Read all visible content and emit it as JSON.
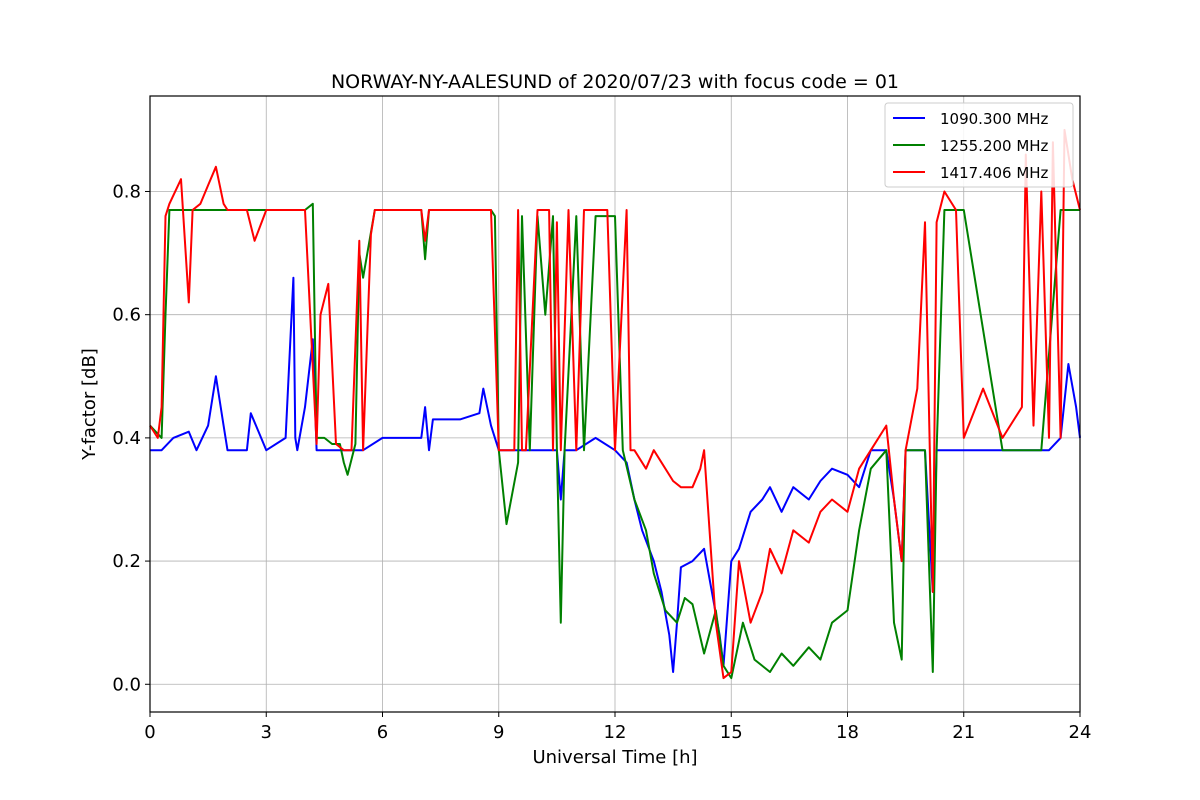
{
  "chart_data": {
    "type": "line",
    "title": "NORWAY-NY-AALESUND of 2020/07/23 with focus code = 01",
    "xlabel": "Universal Time [h]",
    "ylabel": "Y-factor [dB]",
    "xlim": [
      0,
      24
    ],
    "ylim": [
      -0.045,
      0.955
    ],
    "xticks": [
      0,
      3,
      6,
      9,
      12,
      15,
      18,
      21,
      24
    ],
    "yticks": [
      0.0,
      0.2,
      0.4,
      0.6,
      0.8
    ],
    "ytick_labels": [
      "0.0",
      "0.2",
      "0.4",
      "0.6",
      "0.8"
    ],
    "grid": true,
    "legend_position": "top-right",
    "series": [
      {
        "name": "1090.300 MHz",
        "color": "#0000ff",
        "x": [
          0,
          0.3,
          0.6,
          1.0,
          1.2,
          1.5,
          1.7,
          1.9,
          2.0,
          2.5,
          2.6,
          3.0,
          3.5,
          3.7,
          3.75,
          3.8,
          4.0,
          4.2,
          4.3,
          4.7,
          5.0,
          5.5,
          6.0,
          6.5,
          7.0,
          7.1,
          7.2,
          7.3,
          8.0,
          8.5,
          8.6,
          8.8,
          9.0,
          9.5,
          10.0,
          10.5,
          10.6,
          10.7,
          11.0,
          11.5,
          12.0,
          12.3,
          12.5,
          12.7,
          13.0,
          13.2,
          13.4,
          13.5,
          13.6,
          13.7,
          14.0,
          14.3,
          14.5,
          14.7,
          14.8,
          15.0,
          15.2,
          15.5,
          15.8,
          16.0,
          16.3,
          16.6,
          17.0,
          17.3,
          17.6,
          18.0,
          18.3,
          18.6,
          19.0,
          19.2,
          19.4,
          19.5,
          19.8,
          20.0,
          20.2,
          20.3,
          20.5,
          21.0,
          22.0,
          23.0,
          23.2,
          23.5,
          23.7,
          23.9,
          24.0
        ],
        "y": [
          0.38,
          0.38,
          0.4,
          0.41,
          0.38,
          0.42,
          0.5,
          0.42,
          0.38,
          0.38,
          0.44,
          0.38,
          0.4,
          0.66,
          0.4,
          0.38,
          0.45,
          0.56,
          0.38,
          0.38,
          0.38,
          0.38,
          0.4,
          0.4,
          0.4,
          0.45,
          0.38,
          0.43,
          0.43,
          0.44,
          0.48,
          0.42,
          0.38,
          0.38,
          0.38,
          0.38,
          0.3,
          0.38,
          0.38,
          0.4,
          0.38,
          0.36,
          0.3,
          0.25,
          0.2,
          0.15,
          0.08,
          0.02,
          0.1,
          0.19,
          0.2,
          0.22,
          0.15,
          0.08,
          0.03,
          0.2,
          0.22,
          0.28,
          0.3,
          0.32,
          0.28,
          0.32,
          0.3,
          0.33,
          0.35,
          0.34,
          0.32,
          0.38,
          0.38,
          0.3,
          0.2,
          0.38,
          0.38,
          0.38,
          0.15,
          0.38,
          0.38,
          0.38,
          0.38,
          0.38,
          0.38,
          0.4,
          0.52,
          0.45,
          0.4
        ]
      },
      {
        "name": "1255.200 MHz",
        "color": "#008000",
        "x": [
          0,
          0.3,
          0.4,
          0.5,
          1.0,
          2.0,
          3.0,
          4.0,
          4.2,
          4.3,
          4.5,
          4.7,
          4.9,
          5.0,
          5.1,
          5.3,
          5.4,
          5.5,
          5.8,
          6.0,
          7.0,
          7.1,
          7.2,
          8.0,
          8.8,
          8.9,
          9.0,
          9.2,
          9.5,
          9.6,
          9.8,
          10.0,
          10.2,
          10.4,
          10.5,
          10.6,
          10.7,
          11.0,
          11.2,
          11.5,
          11.8,
          12.0,
          12.2,
          12.5,
          12.8,
          13.0,
          13.3,
          13.6,
          13.8,
          14.0,
          14.3,
          14.6,
          14.8,
          15.0,
          15.3,
          15.6,
          16.0,
          16.3,
          16.6,
          17.0,
          17.3,
          17.6,
          18.0,
          18.3,
          18.6,
          19.0,
          19.2,
          19.4,
          19.5,
          19.8,
          20.0,
          20.2,
          20.3,
          20.5,
          20.8,
          21.0,
          22.0,
          23.0,
          23.5,
          23.8,
          24.0
        ],
        "y": [
          0.42,
          0.4,
          0.6,
          0.77,
          0.77,
          0.77,
          0.77,
          0.77,
          0.78,
          0.4,
          0.4,
          0.39,
          0.39,
          0.36,
          0.34,
          0.39,
          0.7,
          0.66,
          0.77,
          0.77,
          0.77,
          0.69,
          0.77,
          0.77,
          0.77,
          0.76,
          0.38,
          0.26,
          0.36,
          0.76,
          0.38,
          0.76,
          0.6,
          0.76,
          0.38,
          0.1,
          0.38,
          0.76,
          0.38,
          0.76,
          0.76,
          0.76,
          0.38,
          0.3,
          0.25,
          0.18,
          0.12,
          0.1,
          0.14,
          0.13,
          0.05,
          0.12,
          0.03,
          0.01,
          0.1,
          0.04,
          0.02,
          0.05,
          0.03,
          0.06,
          0.04,
          0.1,
          0.12,
          0.25,
          0.35,
          0.38,
          0.1,
          0.04,
          0.38,
          0.38,
          0.38,
          0.02,
          0.38,
          0.77,
          0.77,
          0.77,
          0.38,
          0.38,
          0.77,
          0.77,
          0.77
        ]
      },
      {
        "name": "1417.406 MHz",
        "color": "#ff0000",
        "x": [
          0,
          0.2,
          0.3,
          0.4,
          0.5,
          0.8,
          0.9,
          1.0,
          1.1,
          1.3,
          1.5,
          1.7,
          1.9,
          2.0,
          2.5,
          2.7,
          3.0,
          3.5,
          4.0,
          4.3,
          4.4,
          4.6,
          4.8,
          5.0,
          5.2,
          5.4,
          5.5,
          5.7,
          5.8,
          6.0,
          7.0,
          7.1,
          7.2,
          8.0,
          8.8,
          9.0,
          9.4,
          9.5,
          9.6,
          9.7,
          10.0,
          10.3,
          10.4,
          10.5,
          10.6,
          10.8,
          11.0,
          11.2,
          11.5,
          11.8,
          12.0,
          12.3,
          12.4,
          12.5,
          12.8,
          13.0,
          13.5,
          13.7,
          14.0,
          14.2,
          14.3,
          14.6,
          14.8,
          15.0,
          15.2,
          15.5,
          15.8,
          16.0,
          16.3,
          16.6,
          17.0,
          17.3,
          17.6,
          18.0,
          18.3,
          18.6,
          19.0,
          19.2,
          19.4,
          19.5,
          19.8,
          20.0,
          20.2,
          20.3,
          20.5,
          20.8,
          21.0,
          21.5,
          22.0,
          22.5,
          22.6,
          22.8,
          23.0,
          23.2,
          23.3,
          23.5,
          23.6,
          23.8,
          24.0
        ],
        "y": [
          0.42,
          0.4,
          0.45,
          0.76,
          0.78,
          0.82,
          0.72,
          0.62,
          0.77,
          0.78,
          0.81,
          0.84,
          0.78,
          0.77,
          0.77,
          0.72,
          0.77,
          0.77,
          0.77,
          0.39,
          0.6,
          0.65,
          0.39,
          0.38,
          0.38,
          0.72,
          0.38,
          0.73,
          0.77,
          0.77,
          0.77,
          0.72,
          0.77,
          0.77,
          0.77,
          0.38,
          0.38,
          0.77,
          0.38,
          0.38,
          0.77,
          0.77,
          0.38,
          0.75,
          0.38,
          0.77,
          0.38,
          0.77,
          0.77,
          0.77,
          0.38,
          0.77,
          0.38,
          0.38,
          0.35,
          0.38,
          0.33,
          0.32,
          0.32,
          0.35,
          0.38,
          0.1,
          0.01,
          0.02,
          0.2,
          0.1,
          0.15,
          0.22,
          0.18,
          0.25,
          0.23,
          0.28,
          0.3,
          0.28,
          0.35,
          0.38,
          0.42,
          0.3,
          0.2,
          0.38,
          0.48,
          0.75,
          0.15,
          0.75,
          0.8,
          0.77,
          0.4,
          0.48,
          0.4,
          0.45,
          0.86,
          0.42,
          0.8,
          0.4,
          0.88,
          0.4,
          0.9,
          0.82,
          0.77
        ]
      }
    ]
  }
}
